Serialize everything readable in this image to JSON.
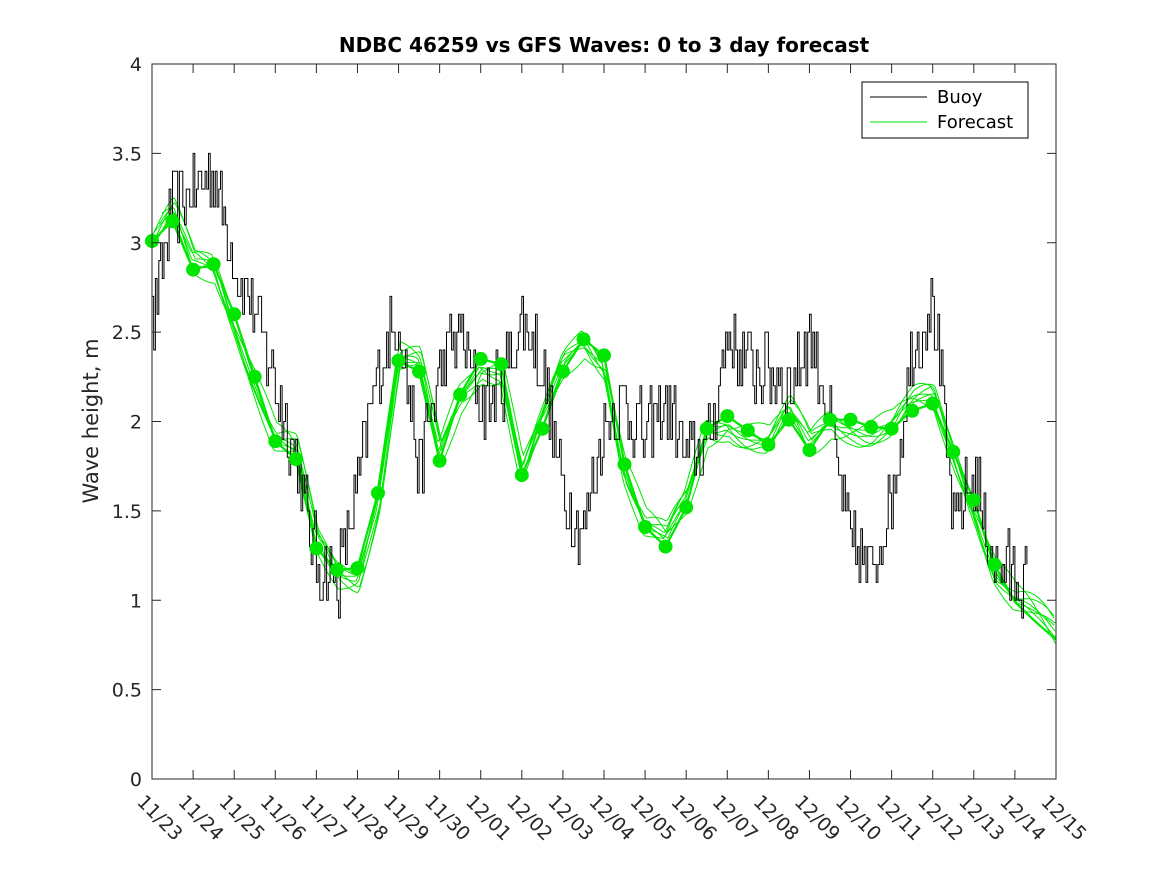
{
  "chart_data": {
    "type": "line",
    "title": "NDBC 46259 vs GFS Waves: 0 to 3 day forecast",
    "xlabel": "",
    "ylabel": "Wave height, m",
    "xlim": [
      0,
      22
    ],
    "ylim": [
      0,
      4
    ],
    "x_ticks": [
      "11/23",
      "11/24",
      "11/25",
      "11/26",
      "11/27",
      "11/28",
      "11/29",
      "11/30",
      "12/01",
      "12/02",
      "12/03",
      "12/04",
      "12/05",
      "12/06",
      "12/07",
      "12/08",
      "12/09",
      "12/10",
      "12/11",
      "12/12",
      "12/13",
      "12/14",
      "12/15"
    ],
    "y_ticks": [
      "0",
      "0.5",
      "1",
      "1.5",
      "2",
      "2.5",
      "3",
      "3.5",
      "4"
    ],
    "legend": {
      "position": "top-right",
      "entries": [
        "Buoy",
        "Forecast"
      ]
    },
    "colors": {
      "buoy": "#000000",
      "forecast": "#00e600"
    },
    "series": [
      {
        "name": "Buoy",
        "x": [
          0,
          0.5,
          1,
          1.5,
          2,
          2.5,
          3,
          3.5,
          4,
          4.5,
          5,
          5.5,
          6,
          6.5,
          7,
          7.5,
          8,
          8.5,
          9,
          9.5,
          10,
          10.5,
          11,
          11.5,
          12,
          12.5,
          13,
          13.5,
          14,
          14.5,
          15,
          15.5,
          16,
          16.5,
          17,
          17.5,
          18,
          18.5,
          19,
          19.5,
          20,
          20.5,
          21,
          21.3
        ],
        "y": [
          2.5,
          3.2,
          3.3,
          3.4,
          2.9,
          2.6,
          2.2,
          1.8,
          1.2,
          1.1,
          1.6,
          2.3,
          2.6,
          1.7,
          2.3,
          2.5,
          2.1,
          2.2,
          2.6,
          2.3,
          1.6,
          1.4,
          2.0,
          2.1,
          1.9,
          2.1,
          1.8,
          1.85,
          2.5,
          2.3,
          2.3,
          2.2,
          2.5,
          2.0,
          1.3,
          1.15,
          1.6,
          2.4,
          2.7,
          1.4,
          1.7,
          1.2,
          1.15,
          1.1
        ]
      },
      {
        "name": "Forecast",
        "x": [
          0,
          0.5,
          1,
          1.5,
          2,
          2.5,
          3,
          3.5,
          4,
          4.5,
          5,
          5.5,
          6,
          6.5,
          7,
          7.5,
          8,
          8.5,
          9,
          9.5,
          10,
          10.5,
          11,
          11.5,
          12,
          12.5,
          13,
          13.5,
          14,
          14.5,
          15,
          15.5,
          16,
          16.5,
          17,
          17.5,
          18,
          18.5,
          19,
          19.5,
          20,
          20.5,
          21,
          21.5,
          22
        ],
        "y": [
          3.01,
          3.12,
          2.85,
          2.88,
          2.6,
          2.25,
          1.89,
          1.79,
          1.29,
          1.17,
          1.18,
          1.6,
          2.34,
          2.28,
          1.78,
          2.15,
          2.35,
          2.32,
          1.7,
          1.96,
          2.28,
          2.46,
          2.37,
          1.76,
          1.41,
          1.3,
          1.52,
          1.96,
          2.03,
          1.95,
          1.87,
          2.01,
          1.84,
          2.01,
          2.01,
          1.97,
          1.96,
          2.06,
          2.1,
          1.83,
          1.56,
          1.2,
          0.99,
          0.88,
          0.78
        ]
      }
    ]
  }
}
